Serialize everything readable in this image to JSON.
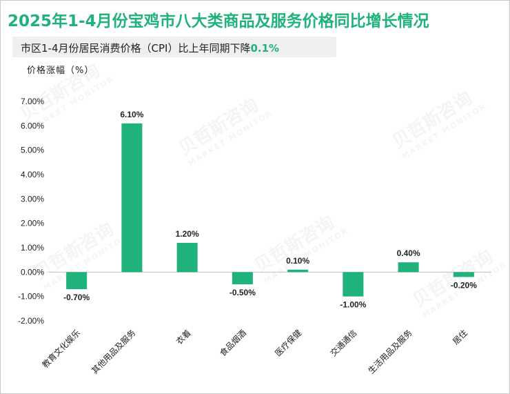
{
  "header": {
    "title": "2025年1-4月份宝鸡市八大类商品及服务价格同比增长情况",
    "subtitle_prefix": "市区1-4月份居民消费价格（CPI）比上年同期下降",
    "subtitle_value": "0.1%",
    "axis_unit_label": "价格涨幅（%）"
  },
  "colors": {
    "bar": "#1fb27a",
    "title": "#1fb27a",
    "axis": "#bfbfbf"
  },
  "chart_data": {
    "type": "bar",
    "title": "2025年1-4月份宝鸡市八大类商品及服务价格同比增长情况",
    "ylabel": "价格涨幅（%）",
    "xlabel": "",
    "ylim": [
      -2.0,
      7.0
    ],
    "yticks": [
      -2.0,
      -1.0,
      0.0,
      1.0,
      2.0,
      3.0,
      4.0,
      5.0,
      6.0,
      7.0
    ],
    "ytick_labels": [
      "-2.00%",
      "-1.00%",
      "0.00%",
      "1.00%",
      "2.00%",
      "3.00%",
      "4.00%",
      "5.00%",
      "6.00%",
      "7.00%"
    ],
    "grid": false,
    "categories": [
      "教育文化娱乐",
      "其他用品及服务",
      "衣着",
      "食品烟酒",
      "医疗保健",
      "交通通信",
      "生活用品及服务",
      "居住"
    ],
    "values": [
      -0.7,
      6.1,
      1.2,
      -0.5,
      0.1,
      -1.0,
      0.4,
      -0.2
    ],
    "data_labels": [
      "-0.70%",
      "6.10%",
      "1.20%",
      "-0.50%",
      "0.10%",
      "-1.00%",
      "0.40%",
      "-0.20%"
    ]
  }
}
